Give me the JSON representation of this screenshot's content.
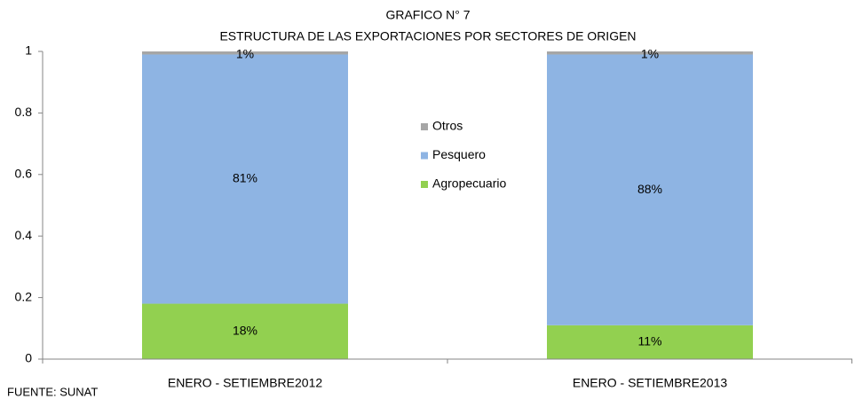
{
  "chart_data": {
    "type": "stacked_bar",
    "title": "GRAFICO N° 7",
    "subtitle": "ESTRUCTURA DE LAS EXPORTACIONES POR SECTORES DE ORIGEN",
    "source": "FUENTE: SUNAT",
    "categories": [
      "ENERO - SETIEMBRE2012",
      "ENERO - SETIEMBRE2013"
    ],
    "series": [
      {
        "name": "Agropecuario",
        "color": "#92d050",
        "values": [
          0.18,
          0.11
        ],
        "value_labels": [
          "18%",
          "11%"
        ]
      },
      {
        "name": "Pesquero",
        "color": "#8eb4e3",
        "values": [
          0.81,
          0.88
        ],
        "value_labels": [
          "81%",
          "88%"
        ]
      },
      {
        "name": "Otros",
        "color": "#a6a6a6",
        "values": [
          0.01,
          0.01
        ],
        "value_labels": [
          "1%",
          "1%"
        ]
      }
    ],
    "ylim": [
      0,
      1
    ],
    "yticks": [
      0,
      0.2,
      0.4,
      0.6,
      0.8,
      1
    ],
    "grid": false,
    "legend": "center"
  }
}
